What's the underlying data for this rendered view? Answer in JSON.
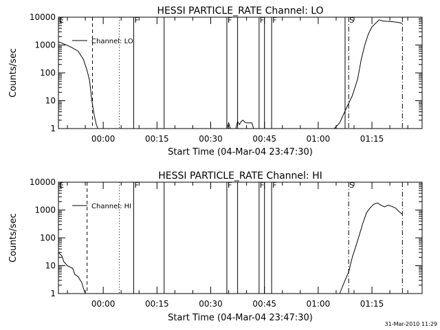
{
  "footer_stamp": "31-Mar-2010 11:29",
  "chart_data": [
    {
      "type": "line",
      "title": "HESSI PARTICLE_RATE Channel: LO",
      "xlabel": "Start Time (04-Mar-04 23:47:30)",
      "ylabel": "Counts/sec",
      "y_scale": "log",
      "ylim": [
        1,
        10000
      ],
      "xlim": [
        "23:47:30",
        "01:29:00"
      ],
      "y_ticks": [
        "1",
        "10",
        "100",
        "1000",
        "10000"
      ],
      "x_ticks": [
        "00:00",
        "00:15",
        "00:30",
        "00:45",
        "01:00",
        "01:15"
      ],
      "grid": false,
      "legend": {
        "placement": "top-left",
        "entries": [
          "Channel: LO"
        ]
      },
      "series": [
        {
          "name": "Channel: LO",
          "segments": [
            [
              [
                "23:47:30",
                1300
              ],
              [
                "23:49:00",
                1100
              ],
              [
                "23:51:00",
                850
              ],
              [
                "23:53:00",
                600
              ],
              [
                "23:54:30",
                300
              ],
              [
                "23:55:30",
                120
              ],
              [
                "23:56:10",
                55
              ],
              [
                "23:56:50",
                10
              ],
              [
                "23:57:30",
                3
              ],
              [
                "23:58:00",
                1.5
              ],
              [
                "23:58:30",
                1
              ]
            ],
            [
              [
                "00:34:30",
                1
              ],
              [
                "00:35:00",
                1.6
              ],
              [
                "00:35:30",
                1
              ],
              [
                "00:37:00",
                1
              ],
              [
                "00:37:30",
                1.8
              ],
              [
                "00:38:00",
                1.4
              ],
              [
                "00:38:30",
                1.8
              ],
              [
                "00:39:00",
                2
              ],
              [
                "00:39:30",
                1.7
              ],
              [
                "00:40:00",
                1.6
              ],
              [
                "00:41:30",
                1.6
              ],
              [
                "00:42:00",
                1
              ]
            ],
            [
              [
                "01:04:30",
                1
              ],
              [
                "01:06:00",
                1.6
              ],
              [
                "01:08:00",
                6
              ],
              [
                "01:09:30",
                15
              ],
              [
                "01:11:00",
                60
              ],
              [
                "01:12:00",
                300
              ],
              [
                "01:13:00",
                1000
              ],
              [
                "01:14:00",
                2500
              ],
              [
                "01:15:00",
                4500
              ],
              [
                "01:16:00",
                6000
              ],
              [
                "01:17:00",
                8000
              ],
              [
                "01:18:00",
                7300
              ],
              [
                "01:19:00",
                7100
              ],
              [
                "01:20:00",
                7000
              ],
              [
                "01:21:00",
                6800
              ],
              [
                "01:22:00",
                6600
              ],
              [
                "01:23:00",
                6200
              ],
              [
                "01:23:30",
                5900
              ]
            ]
          ]
        }
      ],
      "markers": [
        {
          "time": "23:57:00",
          "style": "dashed"
        },
        {
          "time": "00:04:30",
          "style": "dotted"
        },
        {
          "time": "00:08:30",
          "style": "solid",
          "label": "F"
        },
        {
          "time": "00:17:00",
          "style": "solid"
        },
        {
          "time": "00:34:30",
          "style": "solid",
          "label": "F"
        },
        {
          "time": "00:37:30",
          "style": "solid"
        },
        {
          "time": "00:43:30",
          "style": "solid",
          "label": "F"
        },
        {
          "time": "00:45:00",
          "style": "solid"
        },
        {
          "time": "00:47:00",
          "style": "solid",
          "label": "F"
        },
        {
          "time": "01:07:30",
          "style": "solid"
        },
        {
          "time": "01:08:30",
          "style": "dash-dot",
          "label": "S"
        },
        {
          "time": "01:23:30",
          "style": "dash-dot"
        }
      ],
      "edge_label": "E"
    },
    {
      "type": "line",
      "title": "HESSI PARTICLE_RATE Channel: HI",
      "xlabel": "Start Time (04-Mar-04 23:47:30)",
      "ylabel": "Counts/sec",
      "y_scale": "log",
      "ylim": [
        1,
        10000
      ],
      "xlim": [
        "23:47:30",
        "01:29:00"
      ],
      "y_ticks": [
        "1",
        "10",
        "100",
        "1000",
        "10000"
      ],
      "x_ticks": [
        "00:00",
        "00:15",
        "00:30",
        "00:45",
        "01:00",
        "01:15"
      ],
      "grid": false,
      "legend": {
        "placement": "top-left",
        "entries": [
          "Channel: HI"
        ]
      },
      "series": [
        {
          "name": "Channel: HI",
          "segments": [
            [
              [
                "23:47:30",
                30
              ],
              [
                "23:48:30",
                22
              ],
              [
                "23:49:00",
                14
              ],
              [
                "23:50:00",
                10
              ],
              [
                "23:51:30",
                8
              ],
              [
                "23:52:00",
                5
              ],
              [
                "23:53:00",
                4
              ],
              [
                "23:54:00",
                2.5
              ],
              [
                "23:54:30",
                1.5
              ],
              [
                "23:55:00",
                1
              ]
            ],
            [
              [
                "01:06:00",
                1
              ],
              [
                "01:07:30",
                3
              ],
              [
                "01:08:30",
                6
              ],
              [
                "01:09:30",
                20
              ],
              [
                "01:10:30",
                50
              ],
              [
                "01:11:30",
                130
              ],
              [
                "01:12:30",
                350
              ],
              [
                "01:13:30",
                800
              ],
              [
                "01:14:30",
                1200
              ],
              [
                "01:15:30",
                1600
              ],
              [
                "01:16:30",
                1800
              ],
              [
                "01:17:30",
                1500
              ],
              [
                "01:18:30",
                1300
              ],
              [
                "01:19:30",
                1500
              ],
              [
                "01:20:30",
                1350
              ],
              [
                "01:21:30",
                1200
              ],
              [
                "01:22:30",
                900
              ],
              [
                "01:23:30",
                700
              ]
            ]
          ]
        }
      ],
      "markers": [
        {
          "time": "23:55:30",
          "style": "dashed"
        },
        {
          "time": "00:04:30",
          "style": "dotted"
        },
        {
          "time": "00:08:30",
          "style": "solid",
          "label": "F"
        },
        {
          "time": "00:17:00",
          "style": "solid"
        },
        {
          "time": "00:34:30",
          "style": "solid",
          "label": "F"
        },
        {
          "time": "00:37:30",
          "style": "solid"
        },
        {
          "time": "00:43:30",
          "style": "solid",
          "label": "F"
        },
        {
          "time": "00:45:00",
          "style": "solid"
        },
        {
          "time": "00:47:00",
          "style": "solid",
          "label": "F"
        },
        {
          "time": "01:08:30",
          "style": "dash-dot",
          "label": "S"
        },
        {
          "time": "01:23:30",
          "style": "dash-dot"
        }
      ],
      "edge_label": "E"
    }
  ]
}
